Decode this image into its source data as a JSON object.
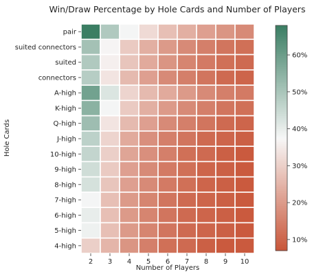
{
  "chart_data": {
    "type": "heatmap",
    "title": "Win/Draw Percentage by Hole Cards and Number of Players",
    "xlabel": "Number of Players",
    "ylabel": "Hole Cards",
    "x_categories": [
      "2",
      "3",
      "4",
      "5",
      "6",
      "7",
      "8",
      "9",
      "10"
    ],
    "y_categories": [
      "pair",
      "suited connectors",
      "suited",
      "connectors",
      "A-high",
      "K-high",
      "Q-high",
      "J-high",
      "10-high",
      "9-high",
      "8-high",
      "7-high",
      "6-high",
      "5-high",
      "4-high"
    ],
    "values": [
      [
        68,
        49,
        38,
        32,
        27,
        24,
        21,
        19,
        17
      ],
      [
        51,
        37,
        29,
        24,
        20,
        17,
        15,
        13,
        12
      ],
      [
        49,
        36,
        28,
        23,
        19,
        16,
        14,
        12,
        11
      ],
      [
        48,
        34,
        26,
        21,
        17,
        15,
        13,
        11,
        10
      ],
      [
        59,
        42,
        31,
        26,
        23,
        20,
        17,
        15,
        14
      ],
      [
        55,
        38,
        29,
        24,
        20,
        17,
        15,
        13,
        12
      ],
      [
        52,
        34,
        26,
        21,
        17,
        15,
        13,
        11,
        10
      ],
      [
        47,
        31,
        23,
        18,
        15,
        13,
        11,
        10,
        9
      ],
      [
        46,
        30,
        22,
        18,
        15,
        12,
        11,
        9,
        8
      ],
      [
        44,
        29,
        21,
        17,
        14,
        12,
        10,
        9,
        8
      ],
      [
        43,
        28,
        21,
        17,
        14,
        12,
        10,
        9,
        8
      ],
      [
        38,
        27,
        20,
        16,
        13,
        11,
        10,
        9,
        8
      ],
      [
        40,
        27,
        20,
        16,
        13,
        11,
        10,
        9,
        8
      ],
      [
        39,
        27,
        20,
        16,
        13,
        11,
        10,
        9,
        8
      ],
      [
        30,
        25,
        19,
        15,
        12,
        11,
        9,
        8,
        8
      ]
    ],
    "colorbar": {
      "range": [
        7,
        68
      ],
      "ticks": [
        10,
        20,
        30,
        40,
        50,
        60
      ],
      "tick_labels": [
        "10%",
        "20%",
        "30%",
        "40%",
        "50%",
        "60%"
      ]
    },
    "colors": {
      "low": "#c85538",
      "mid": "#f7f7f7",
      "high": "#3b7e63"
    },
    "grid": false,
    "legend": "colorbar-right"
  }
}
